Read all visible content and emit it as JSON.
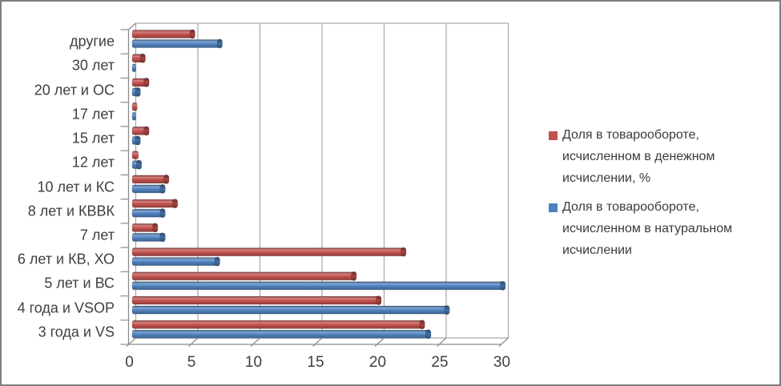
{
  "chart_data": {
    "type": "bar",
    "orientation": "horizontal",
    "style": "3d-clustered",
    "title": "",
    "xlabel": "",
    "ylabel": "",
    "categories_top_to_bottom": [
      "другие",
      "30 лет",
      "20 лет и ОС",
      "17 лет",
      "15 лет",
      "12 лет",
      "10 лет и КС",
      "8 лет и КВВК",
      "7 лет",
      "6 лет и КВ, ХО",
      "5 лет и ВС",
      "4 года и VSOP",
      "3 года и VS"
    ],
    "series": [
      {
        "name": "Доля в товарообороте, исчисленном в денежном исчислении, %",
        "color": "#C0504D",
        "values": [
          5.0,
          1.0,
          1.3,
          0.4,
          1.3,
          0.5,
          2.9,
          3.6,
          2.0,
          22.0,
          18.0,
          20.0,
          23.5
        ]
      },
      {
        "name": "Доля в товарообороте, исчисленном в натуральном исчислении",
        "color": "#4F81BD",
        "values": [
          7.2,
          0.3,
          0.6,
          0.3,
          0.6,
          0.7,
          2.6,
          2.6,
          2.6,
          7.0,
          30.0,
          25.5,
          24.0
        ]
      }
    ],
    "x_axis": {
      "min": 0,
      "max": 30,
      "tick_step": 5,
      "tick_labels": [
        "0",
        "5",
        "10",
        "15",
        "20",
        "25",
        "30"
      ],
      "gridlines": true
    },
    "legend": {
      "position": "right",
      "entries": [
        {
          "series": 0,
          "color": "#C0504D",
          "lines": [
            "Доля в товарообороте,",
            "исчисленном в денежном",
            "исчислении, %"
          ]
        },
        {
          "series": 1,
          "color": "#4F81BD",
          "lines": [
            "Доля в товарообороте,",
            "исчисленном в натуральном",
            "исчислении"
          ]
        }
      ]
    },
    "frame_colors": {
      "gridline": "#a6a6a6",
      "axis_line": "#8c8c8c",
      "text": "#3f3f3f",
      "outer_border": "#7f7f7f",
      "background": "#ffffff"
    }
  }
}
